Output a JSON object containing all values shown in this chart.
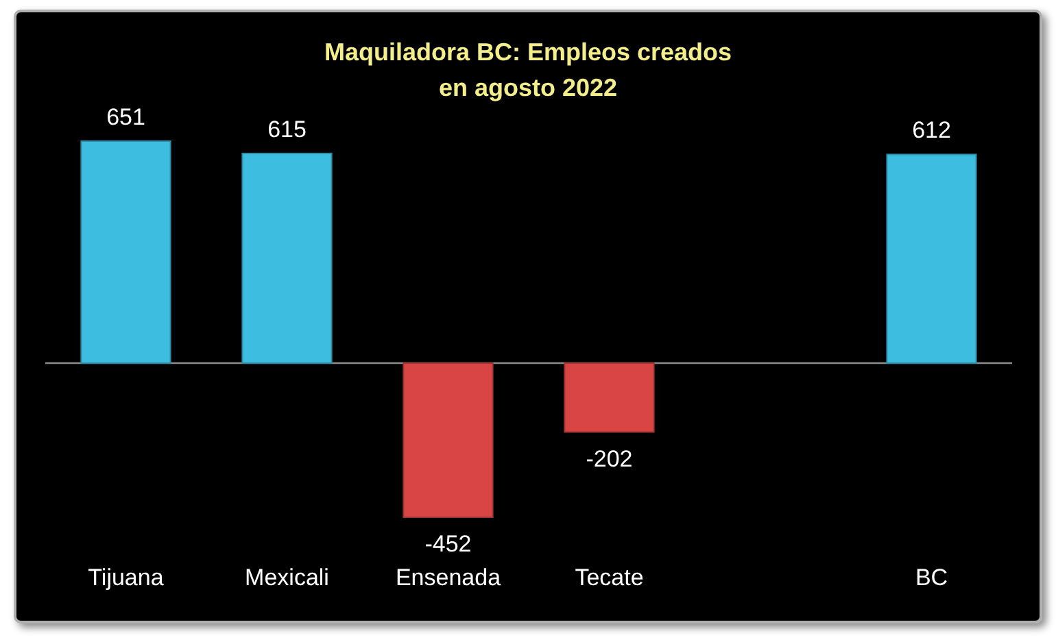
{
  "chart_data": {
    "type": "bar",
    "title": "Maquiladora BC: Empleos creados en agosto 2022",
    "categories": [
      "Tijuana",
      "Mexicali",
      "Ensenada",
      "Tecate",
      null,
      "BC"
    ],
    "values": [
      651,
      615,
      -452,
      -202,
      null,
      612
    ],
    "colors": [
      "#3dbde0",
      "#3dbde0",
      "#d94545",
      "#d94545",
      null,
      "#3dbde0"
    ],
    "data_labels": true
  }
}
